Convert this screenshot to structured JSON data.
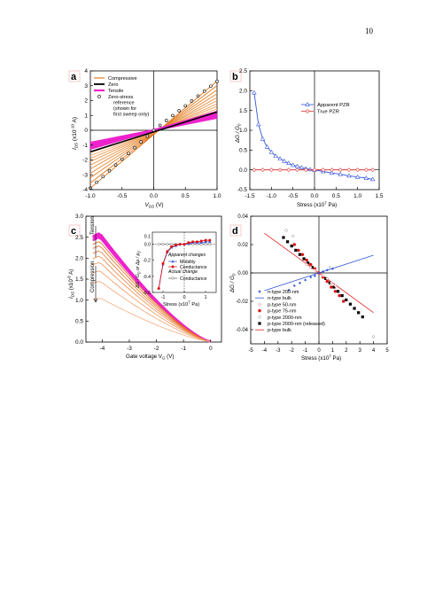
{
  "page": {
    "number": "10"
  },
  "chart_data": [
    {
      "panel": "a",
      "type": "line",
      "xlabel": "V_DS (V)",
      "xlabel_main": "V",
      "xlabel_sub": "DS",
      "xlabel_unit": " (V)",
      "ylabel_main": "I",
      "ylabel_sub": "DS",
      "ylabel_unit": " (x10",
      "ylabel_exp": "-10",
      "ylabel_tail": " A)",
      "xlim": [
        -1.0,
        1.0
      ],
      "ylim": [
        -4,
        4
      ],
      "xticks": [
        "-1.0",
        "-0.5",
        "0.0",
        "0.5",
        "1.0"
      ],
      "yticks": [
        "-4",
        "-3",
        "-2",
        "-1",
        "0",
        "1",
        "2",
        "3",
        "4"
      ],
      "legend": [
        "Compressive",
        "Zero",
        "Tensile",
        "Zero-stress",
        "reference",
        "(shown for",
        "first sweep only)"
      ],
      "series_compressive_slopes": [
        3.9,
        3.55,
        3.2,
        2.9,
        2.6,
        2.35,
        2.1,
        1.9,
        1.7,
        1.5
      ],
      "zero_slope": 1.45,
      "tensile_slopes": [
        0.85,
        0.95,
        1.05,
        1.15,
        1.25
      ],
      "reference_points": {
        "x": [
          -1.0,
          -0.9,
          -0.8,
          -0.7,
          -0.6,
          -0.5,
          -0.4,
          -0.3,
          -0.2,
          -0.1,
          0.0,
          0.1,
          0.2,
          0.3,
          0.4,
          0.5,
          0.6,
          0.7,
          0.8,
          0.9,
          1.0
        ],
        "y": [
          -3.9,
          -3.5,
          -3.12,
          -2.73,
          -2.34,
          -1.95,
          -1.56,
          -1.17,
          -0.78,
          -0.39,
          0.0,
          0.33,
          0.66,
          0.99,
          1.32,
          1.65,
          1.98,
          2.31,
          2.64,
          2.97,
          3.3
        ]
      }
    },
    {
      "panel": "b",
      "type": "line",
      "xlabel": "Stress (x10",
      "xlabel_exp": "7",
      "xlabel_tail": " Pa)",
      "ylabel": "ΔG / G",
      "ylabel_sub": "0",
      "xlim": [
        -1.5,
        1.5
      ],
      "ylim": [
        -0.5,
        2.5
      ],
      "xticks": [
        "-1.5",
        "-1.0",
        "-0.5",
        "0.0",
        "0.5",
        "1.0",
        "1.5"
      ],
      "yticks": [
        "-0.5",
        "0.0",
        "0.5",
        "1.0",
        "1.5",
        "2.0",
        "2.5"
      ],
      "series": [
        {
          "name": "Apparent PZR",
          "color": "#3355dd",
          "x": [
            -1.4,
            -1.3,
            -1.2,
            -1.1,
            -1.0,
            -0.9,
            -0.8,
            -0.7,
            -0.6,
            -0.5,
            -0.4,
            -0.3,
            -0.2,
            -0.1,
            0.0,
            0.2,
            0.4,
            0.6,
            0.8,
            1.0,
            1.2,
            1.35
          ],
          "y": [
            1.95,
            1.15,
            0.78,
            0.58,
            0.45,
            0.35,
            0.28,
            0.22,
            0.17,
            0.12,
            0.09,
            0.06,
            0.03,
            0.01,
            0.0,
            -0.04,
            -0.08,
            -0.11,
            -0.15,
            -0.18,
            -0.21,
            -0.24
          ]
        },
        {
          "name": "True PZR",
          "color": "#dd3333",
          "x": [
            -1.4,
            -1.2,
            -1.0,
            -0.8,
            -0.6,
            -0.4,
            -0.2,
            0.0,
            0.2,
            0.4,
            0.6,
            0.8,
            1.0,
            1.2,
            1.35
          ],
          "y": [
            0,
            0,
            0,
            0,
            0,
            0,
            0,
            0,
            0,
            0,
            0,
            0,
            0,
            0,
            0
          ]
        }
      ]
    },
    {
      "panel": "c",
      "type": "line",
      "xlabel": "Gate voltage V",
      "xlabel_sub": "G",
      "xlabel_tail": " (V)",
      "ylabel_main": "I",
      "ylabel_sub": "DS",
      "ylabel_unit": " (x10",
      "ylabel_exp": "-8",
      "ylabel_tail": " A)",
      "xlim": [
        -4.6,
        0.4
      ],
      "ylim": [
        0,
        3.0
      ],
      "xticks": [
        "-4",
        "-3",
        "-2",
        "-1",
        "0"
      ],
      "yticks": [
        "0.0",
        "0.5",
        "1.0",
        "1.5",
        "2.0",
        "2.5",
        "3.0"
      ],
      "labels": {
        "tension": "Tension",
        "compression": "Compression"
      },
      "peak_values": [
        2.6,
        2.58,
        2.55,
        2.5,
        2.4,
        2.3,
        2.18,
        2.05,
        1.9,
        1.7,
        1.45,
        1.05
      ],
      "inset": {
        "xlabel": "Stress (x10",
        "xlabel_exp": "7",
        "xlabel_tail": " Pa)",
        "ylabel": "ΔG / G",
        "ylabel_sub": "0",
        "ylabel_mid": " or Δμ / μ",
        "ylabel_sub2": "0",
        "xlim": [
          -1.5,
          1.5
        ],
        "ylim": [
          -0.6,
          0.15
        ],
        "xticks": [
          "-1",
          "0",
          "1"
        ],
        "yticks": [
          "0.0",
          "-0.2",
          "-0.4",
          "-0.6"
        ],
        "ytick_top": "0.1",
        "legend_title_apparent": "Apparent changes",
        "legend_title_actual": "Actual change",
        "legend": [
          "Mobility",
          "Conductance",
          "Conductance"
        ],
        "mobility": {
          "x": [
            -1.2,
            -1.0,
            -0.8,
            -0.6,
            -0.4,
            -0.2,
            0.0,
            0.2,
            0.4,
            0.6,
            0.8,
            1.0,
            1.2
          ],
          "y": [
            -0.55,
            -0.25,
            -0.1,
            -0.04,
            -0.02,
            0.0,
            0.0,
            0.01,
            0.02,
            0.02,
            0.02,
            0.03,
            0.03
          ]
        },
        "conductance": {
          "x": [
            -1.2,
            -1.0,
            -0.8,
            -0.6,
            -0.4,
            -0.2,
            0.0,
            0.2,
            0.4,
            0.6,
            0.8,
            1.0,
            1.2
          ],
          "y": [
            -0.55,
            -0.24,
            -0.09,
            -0.03,
            -0.01,
            0.0,
            0.0,
            0.02,
            0.03,
            0.03,
            0.04,
            0.05,
            0.05
          ]
        },
        "actual": {
          "x": [
            -1.2,
            -1.0,
            -0.8,
            -0.6,
            -0.4,
            -0.2,
            0.0,
            0.2,
            0.4,
            0.6,
            0.8,
            1.0,
            1.2
          ],
          "y": [
            0.0,
            0.0,
            0.0,
            0.0,
            0.0,
            0.0,
            0.0,
            0.0,
            0.0,
            0.0,
            0.0,
            0.0,
            0.0
          ]
        }
      }
    },
    {
      "panel": "d",
      "type": "scatter",
      "xlabel": "Stress (x10",
      "xlabel_exp": "7",
      "xlabel_tail": " Pa)",
      "ylabel": "ΔG / G",
      "ylabel_sub": "0",
      "xlim": [
        -5,
        5
      ],
      "ylim": [
        -0.05,
        0.04
      ],
      "xticks": [
        "-5",
        "-4",
        "-3",
        "-2",
        "-1",
        "0",
        "1",
        "2",
        "3",
        "4",
        "5"
      ],
      "yticks": [
        "0.04",
        "0.02",
        "0.00",
        "-0.02",
        "-0.04"
      ],
      "legend": [
        "n-type 200-nm",
        "n-type bulk",
        "p-type 50-nm",
        "p-type 75-nm",
        "p-type 2000-nm",
        "p-type 2000-nm (released)",
        "p-type bulk"
      ],
      "n_bulk_line": {
        "x": [
          -4,
          4
        ],
        "y": [
          -0.0125,
          0.0125
        ]
      },
      "p_bulk_line": {
        "x": [
          -4,
          4
        ],
        "y": [
          0.028,
          -0.028
        ]
      },
      "n200": {
        "x": [
          -2.2,
          -1.8,
          -1.4,
          -1.0,
          -0.6,
          -0.3,
          0.0,
          0.3,
          0.6,
          1.0
        ],
        "y": [
          -0.012,
          -0.009,
          -0.007,
          -0.005,
          -0.003,
          -0.002,
          0.0,
          0.001,
          0.002,
          0.003
        ]
      },
      "p75": {
        "x": [
          -1.8,
          -1.5,
          -1.2,
          -0.9,
          -0.6,
          -0.3,
          0.0,
          0.3,
          0.6,
          0.9,
          1.2,
          1.5,
          1.8
        ],
        "y": [
          0.02,
          0.016,
          0.013,
          0.009,
          0.006,
          0.003,
          0.0,
          -0.003,
          -0.006,
          -0.01,
          -0.013,
          -0.016,
          -0.02
        ]
      },
      "p2000r": {
        "x": [
          -2.6,
          -2.3,
          -2.0,
          -1.7,
          -1.4,
          -1.1,
          -0.8,
          -0.5,
          0.5,
          0.8,
          1.1,
          1.4,
          1.7,
          2.0,
          2.3,
          2.6,
          2.9,
          3.2
        ],
        "y": [
          0.025,
          0.022,
          0.019,
          0.016,
          0.013,
          0.01,
          0.007,
          0.004,
          -0.004,
          -0.007,
          -0.01,
          -0.013,
          -0.016,
          -0.019,
          -0.022,
          -0.025,
          -0.028,
          -0.031
        ]
      },
      "p50": {
        "x": [
          -0.9,
          -0.6,
          -0.3,
          0.3,
          0.6,
          0.9,
          1.2
        ],
        "y": [
          0.006,
          0.004,
          0.002,
          -0.002,
          -0.004,
          -0.007,
          -0.009
        ]
      },
      "p2000": {
        "x": [
          -2.4,
          -1.9,
          0.8,
          4.0
        ],
        "y": [
          0.03,
          0.026,
          0.004,
          -0.045
        ]
      }
    }
  ]
}
